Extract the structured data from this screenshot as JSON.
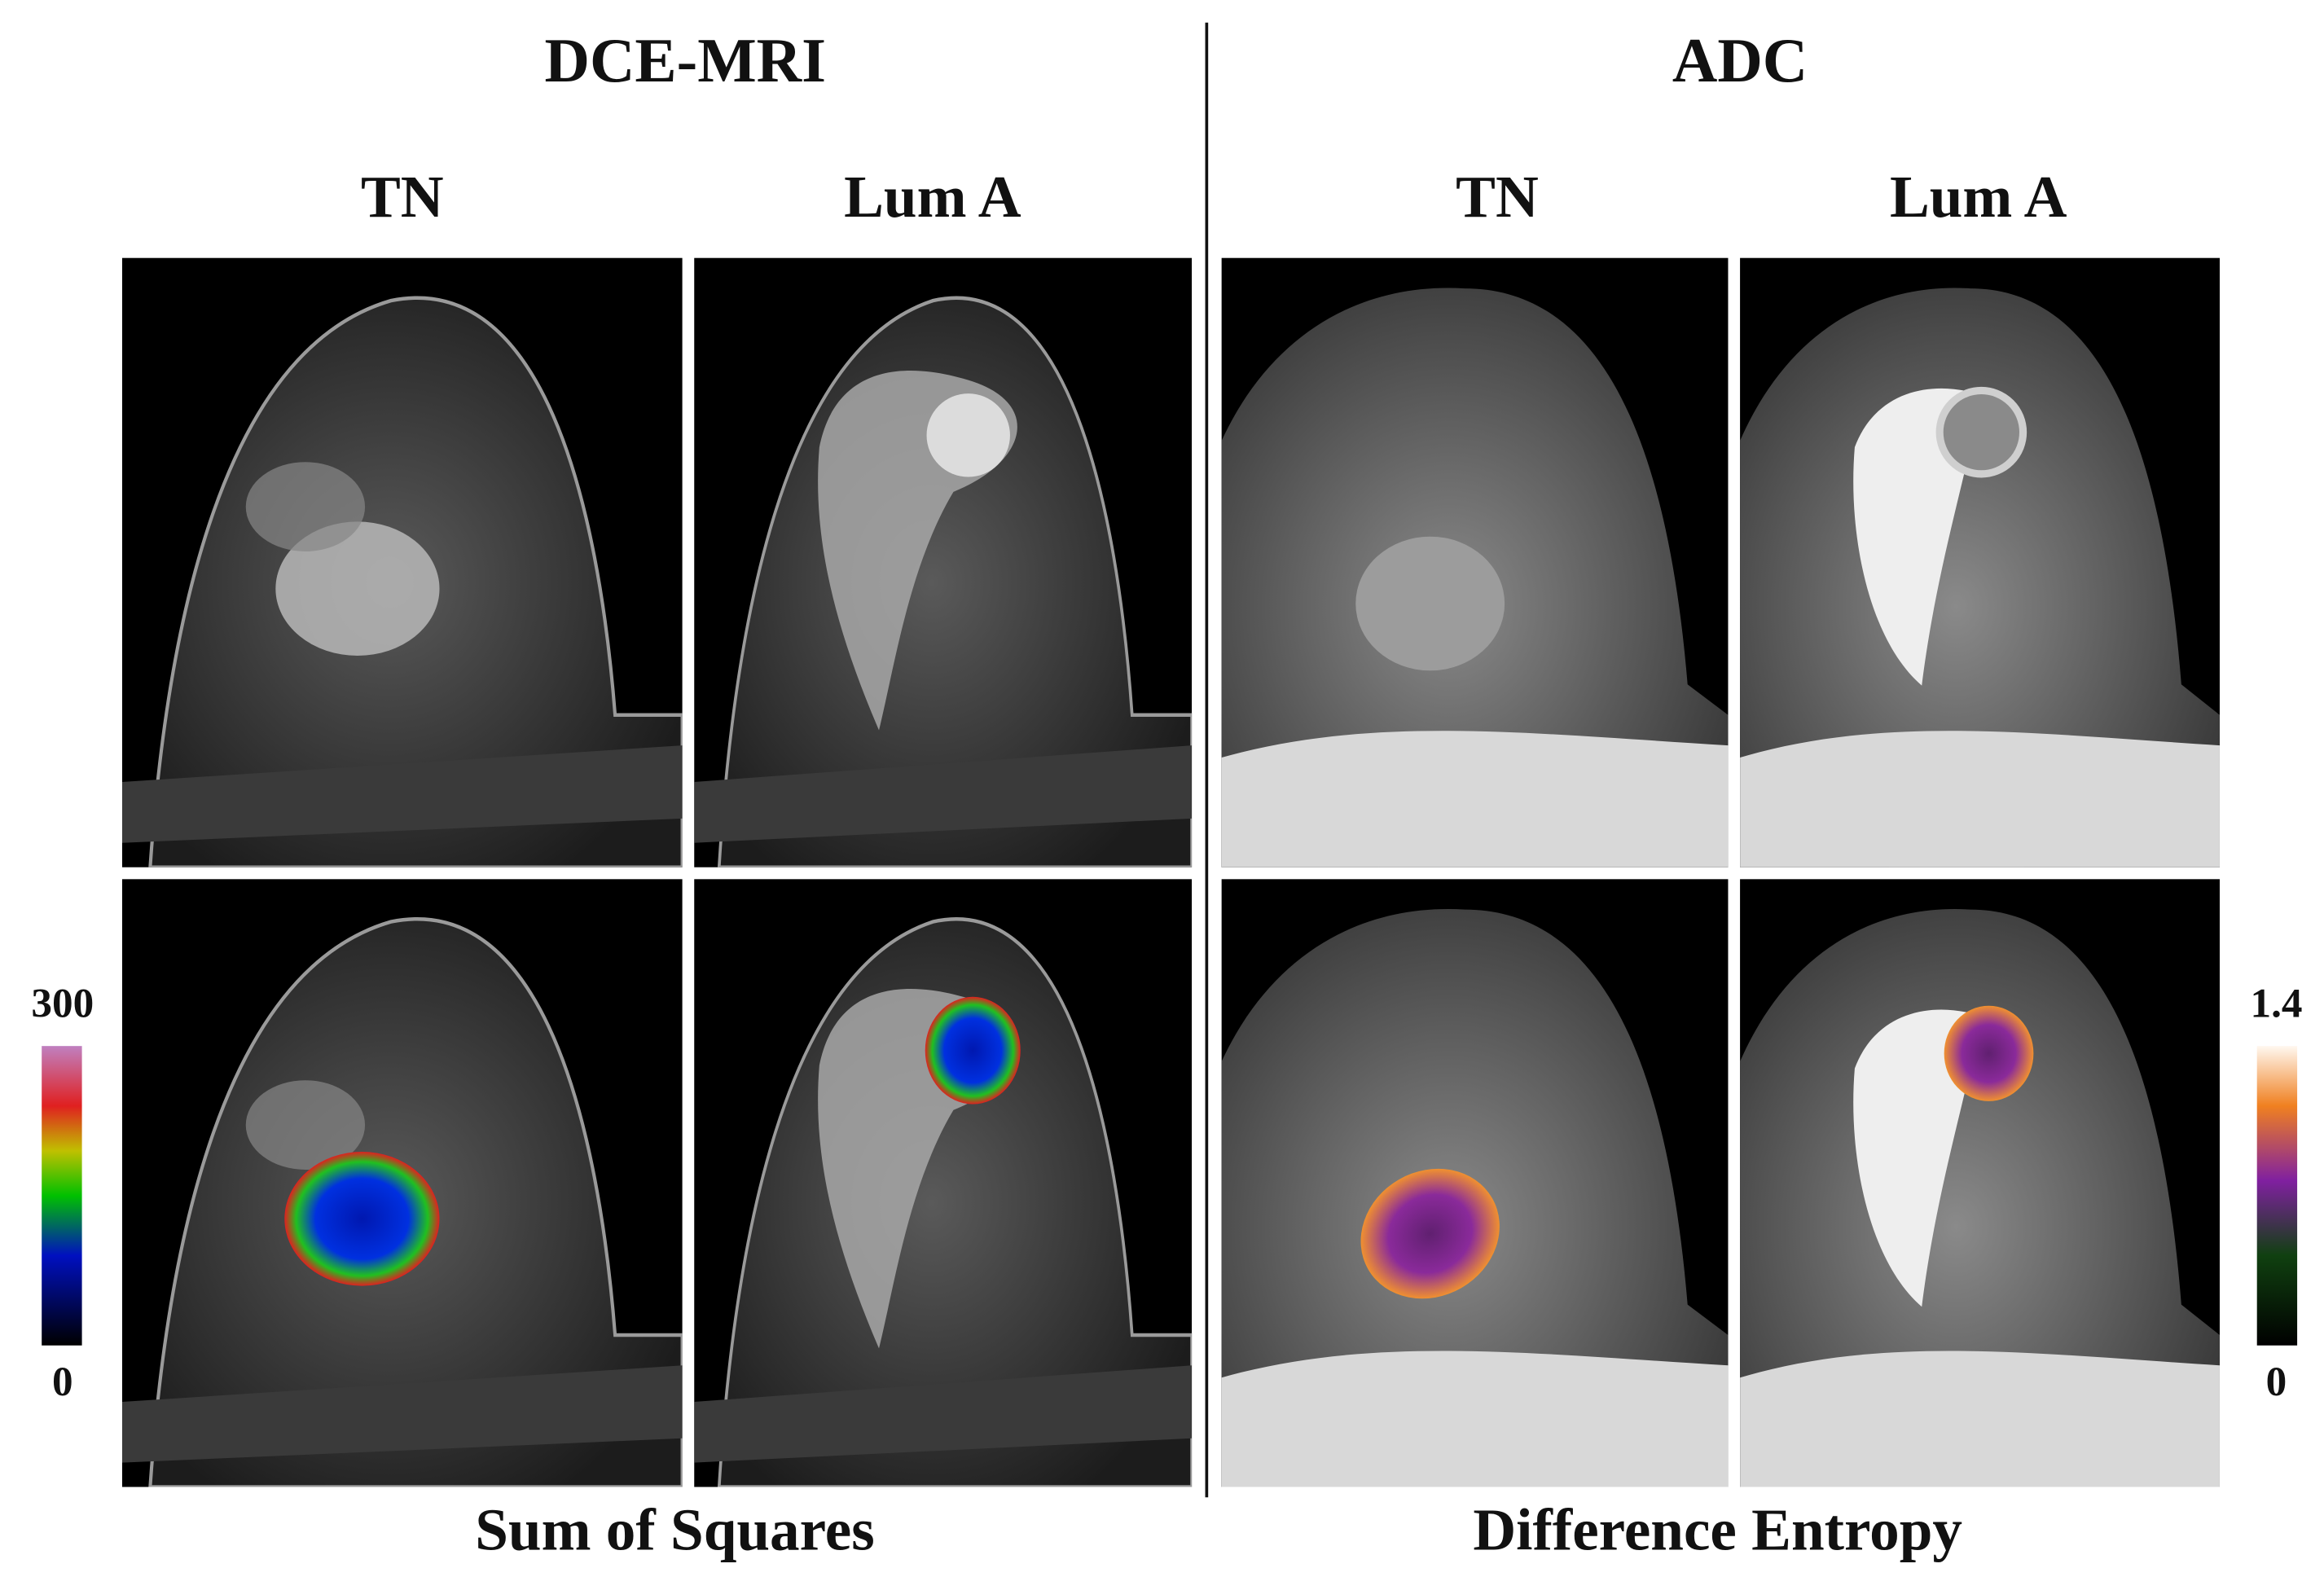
{
  "headers": {
    "left": "DCE-MRI",
    "right": "ADC"
  },
  "columns": [
    "TN",
    "Lum A",
    "TN",
    "Lum A"
  ],
  "colorbars": {
    "left": {
      "max": 300,
      "min": 0
    },
    "right": {
      "max": 1.4,
      "min": 0
    }
  },
  "footers": {
    "left": "Sum of Squares",
    "right": "Difference Entropy"
  }
}
